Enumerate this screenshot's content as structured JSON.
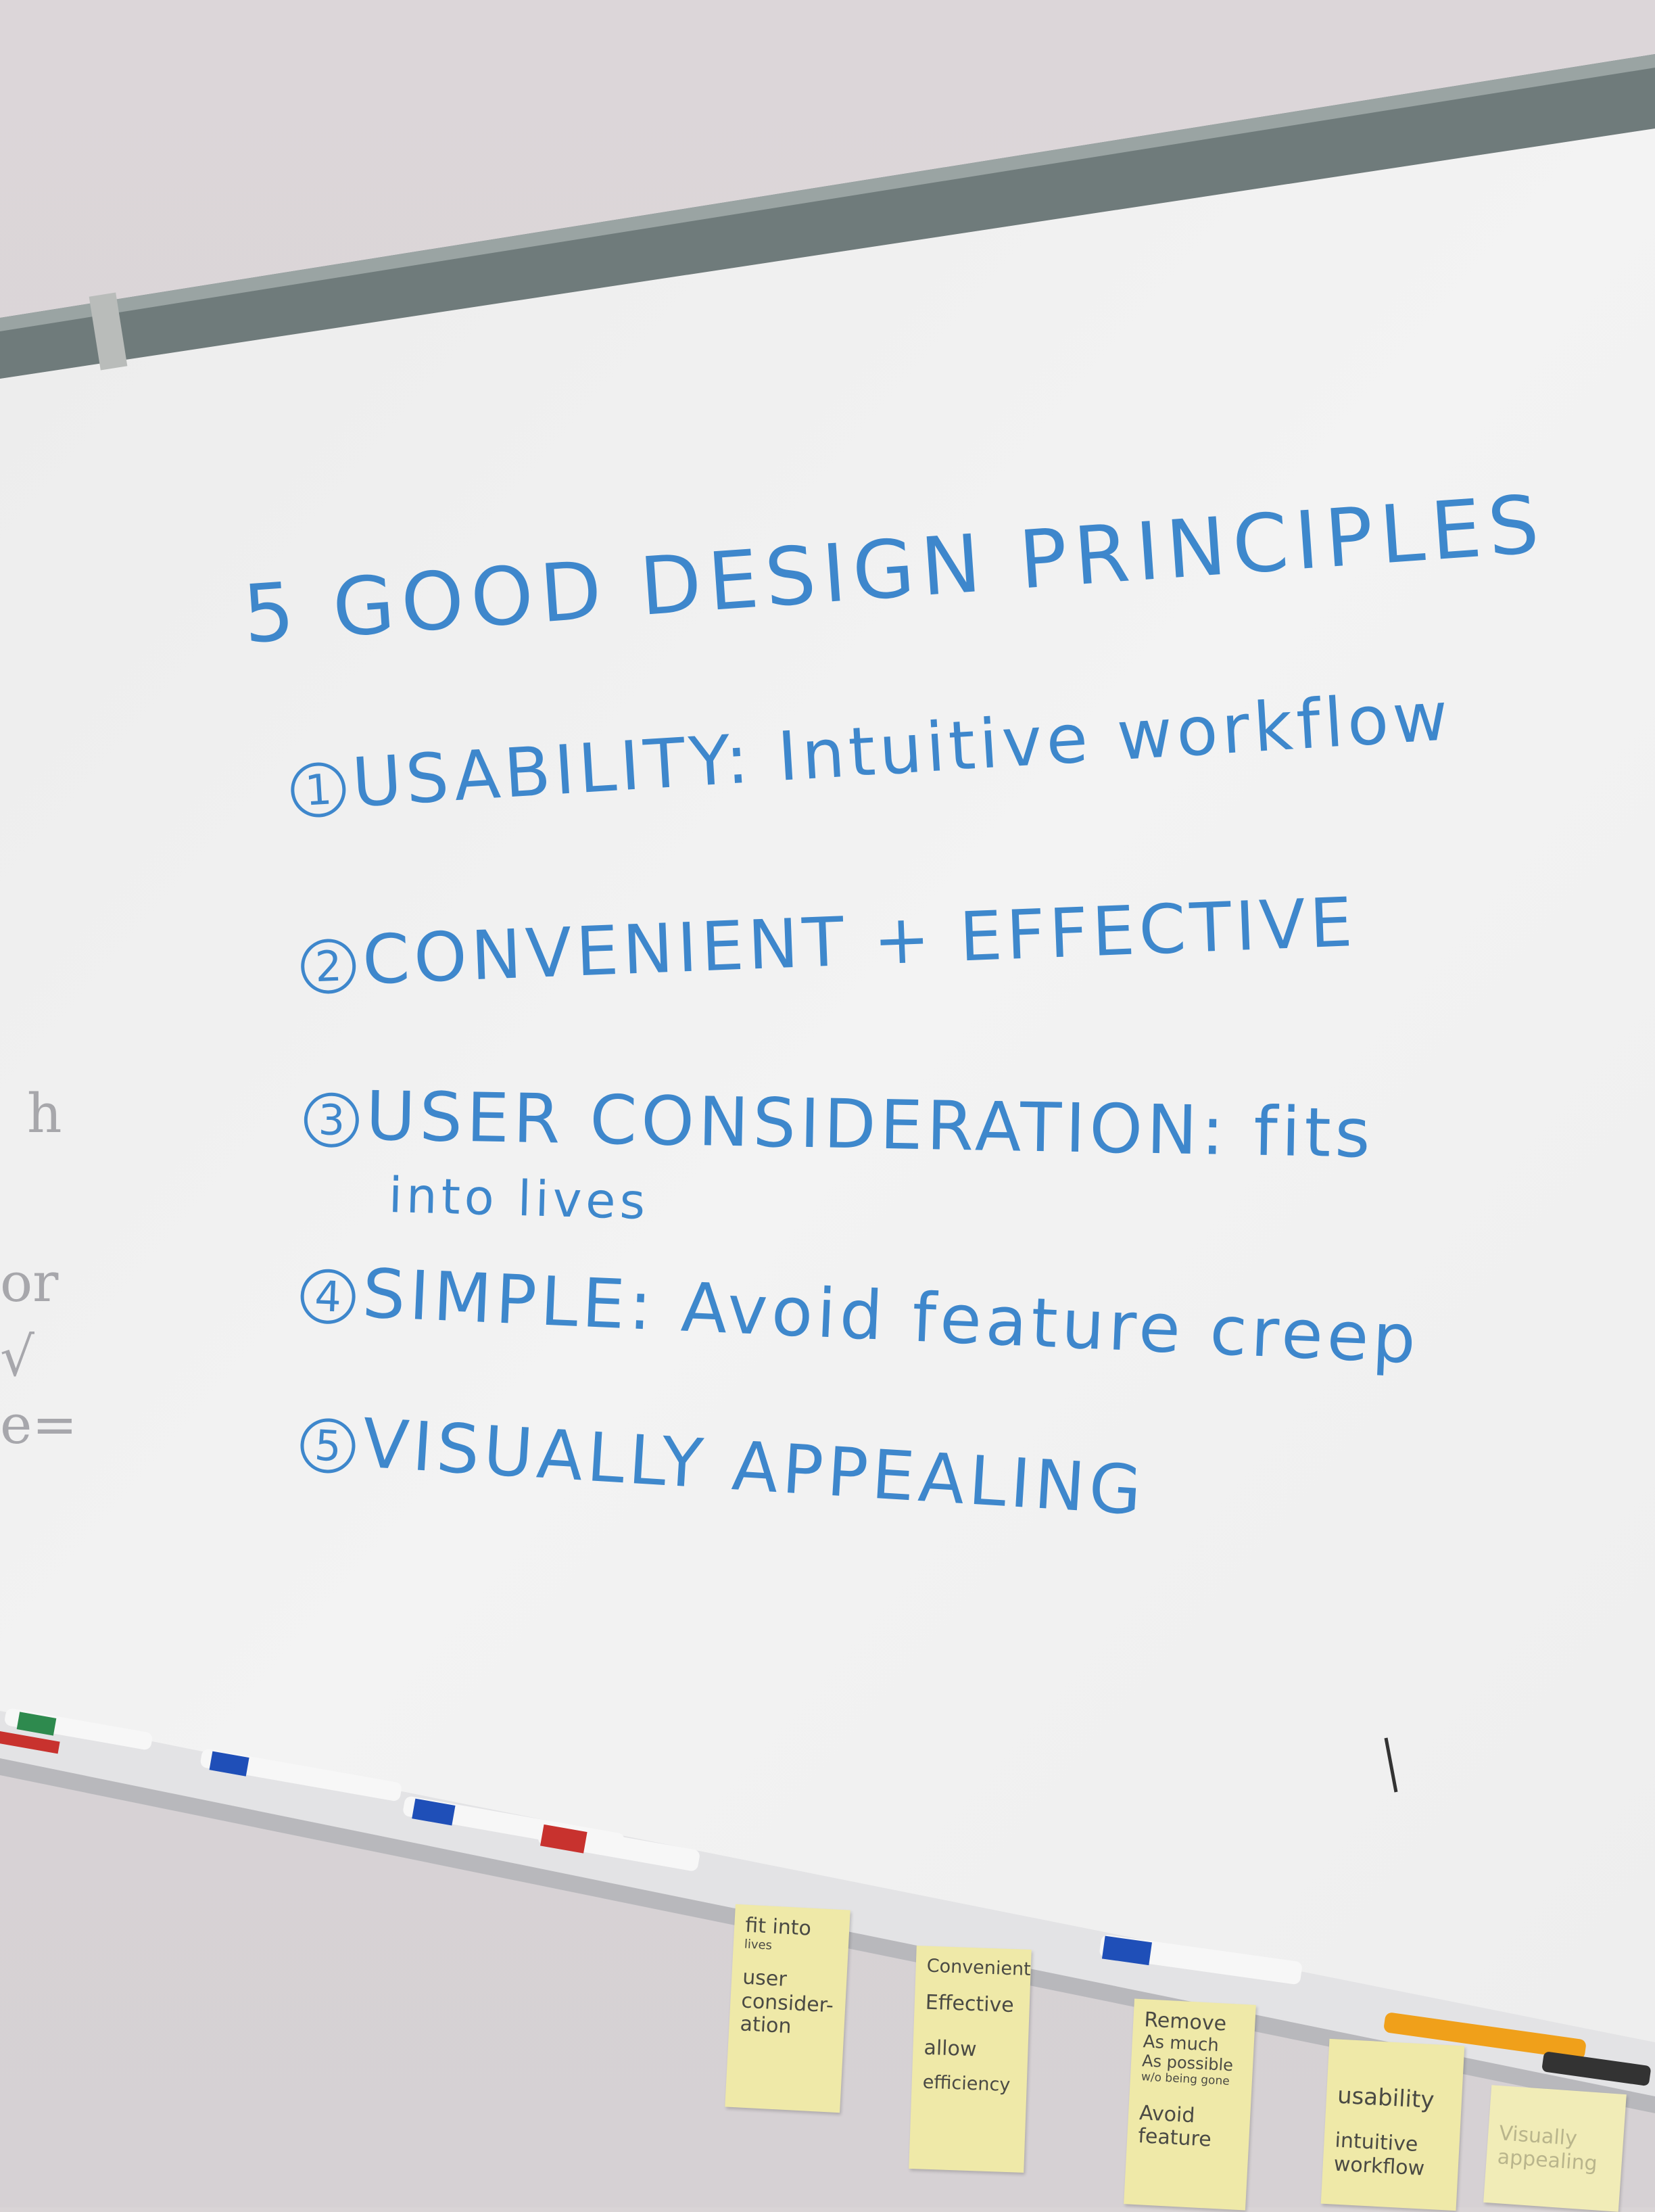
{
  "whiteboard": {
    "title": "5 GOOD DESIGN PRINCIPLES",
    "principles": [
      {
        "number": "1",
        "text": "USABILITY: Intuitive workflow"
      },
      {
        "number": "2",
        "text": "CONVENIENT + EFFECTIVE"
      },
      {
        "number": "3",
        "text": "USER CONSIDERATION: fits",
        "continuation": "into lives"
      },
      {
        "number": "4",
        "text": "SIMPLE: Avoid feature creep"
      },
      {
        "number": "5",
        "text": "VISUALLY APPEALING"
      }
    ]
  },
  "sticky_notes": [
    {
      "lines": [
        "fit into",
        "lives",
        "user",
        "consider-",
        "ation"
      ]
    },
    {
      "lines": [
        "Convenient",
        "Effective",
        "allow",
        "efficiency"
      ]
    },
    {
      "lines": [
        "Remove",
        "As much",
        "As possible",
        "w/o being gone",
        "Avoid",
        "feature"
      ]
    },
    {
      "lines": [
        "usability",
        "intuitive",
        "workflow"
      ]
    },
    {
      "lines": [
        "Visually",
        "appealing"
      ]
    }
  ],
  "colors": {
    "ink": "#2f7fc9",
    "board": "#f2f2f2",
    "wall": "#d9d4d6",
    "sticky": "#efe9a8"
  }
}
